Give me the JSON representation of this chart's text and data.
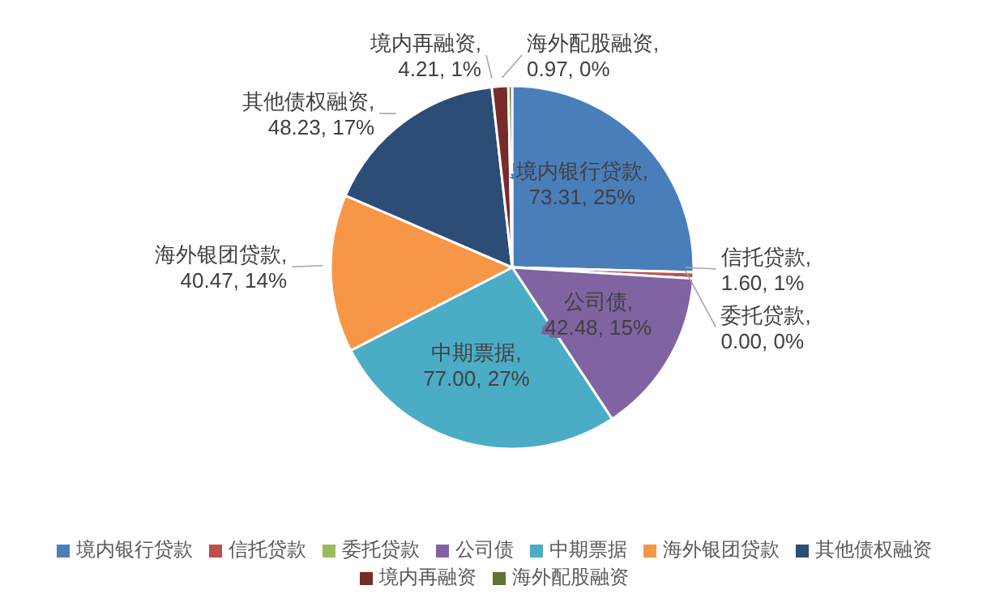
{
  "chart_data": {
    "type": "pie",
    "categories": [
      "境内银行贷款",
      "信托贷款",
      "委托贷款",
      "公司债",
      "中期票据",
      "海外银团贷款",
      "其他债权融资",
      "境内再融资",
      "海外配股融资"
    ],
    "values": [
      73.31,
      1.6,
      0.0,
      42.48,
      77.0,
      40.47,
      48.23,
      4.21,
      0.97
    ],
    "value_labels": [
      "境内银行贷款, 73.31, 25%",
      "信托贷款, 1.60, 1%",
      "委托贷款, 0.00, 0%",
      "公司债, 42.48, 15%",
      "中期票据, 77.00, 27%",
      "海外银团贷款, 40.47, 14%",
      "其他债权融资, 48.23, 17%",
      "境内再融资, 4.21, 1%",
      "海外配股融资, 0.97, 0%"
    ],
    "colors": [
      "#4a7ebb",
      "#c0504d",
      "#9bbb59",
      "#8064a2",
      "#4bacc6",
      "#f79646",
      "#2c4d75",
      "#772c2a",
      "#5f7530"
    ],
    "legend": "bottom"
  }
}
